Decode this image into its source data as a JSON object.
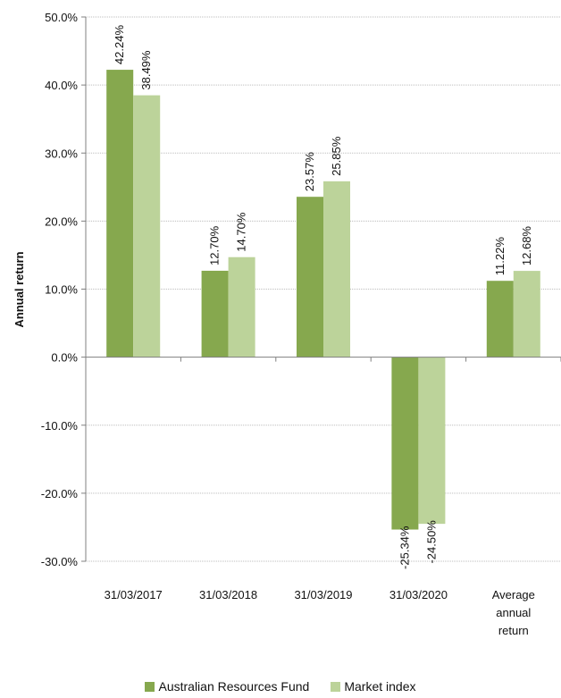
{
  "chart_data": {
    "type": "bar",
    "ylabel": "Annual return",
    "xlabel": "",
    "ylim": [
      -30,
      50
    ],
    "y_tick_step": 10,
    "y_tick_labels": [
      "50.0%",
      "40.0%",
      "30.0%",
      "20.0%",
      "10.0%",
      "0.0%",
      "-10.0%",
      "-20.0%",
      "-30.0%"
    ],
    "grid": true,
    "legend_position": "bottom",
    "categories": [
      [
        "31/03/2017"
      ],
      [
        "31/03/2018"
      ],
      [
        "31/03/2019"
      ],
      [
        "31/03/2020"
      ],
      [
        "Average",
        "annual",
        "return"
      ]
    ],
    "series": [
      {
        "name": "Australian Resources Fund",
        "color": "#86a84e",
        "values": [
          42.24,
          12.7,
          23.57,
          -25.34,
          11.22
        ],
        "labels": [
          "42.24%",
          "12.70%",
          "23.57%",
          "-25.34%",
          "11.22%"
        ]
      },
      {
        "name": "Market index",
        "color": "#bcd39a",
        "values": [
          38.49,
          14.7,
          25.85,
          -24.5,
          12.68
        ],
        "labels": [
          "38.49%",
          "14.70%",
          "25.85%",
          "-24.50%",
          "12.68%"
        ]
      }
    ]
  }
}
